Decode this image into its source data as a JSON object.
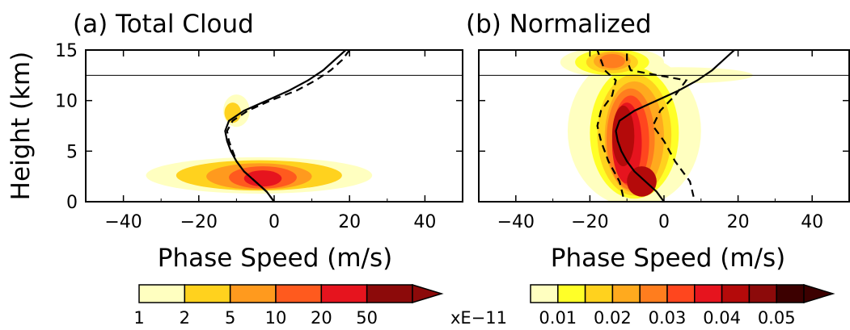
{
  "figure": {
    "ylabel": "Height (km)",
    "cb_unit": "xE−11"
  },
  "chart_data": [
    {
      "type": "heatmap",
      "panel": "a",
      "title": "(a) Total Cloud",
      "xlabel": "Phase Speed (m/s)",
      "ylabel": "Height (km)",
      "xlim": [
        -50,
        50
      ],
      "ylim": [
        0,
        15
      ],
      "xticks": [
        -40,
        -20,
        0,
        20,
        40
      ],
      "yticks": [
        0,
        5,
        10,
        15
      ],
      "reference_height_km": 12.5,
      "contour_levels": [
        1,
        2,
        5,
        10,
        20,
        50
      ],
      "colorbar_labels": [
        "1",
        "2",
        "5",
        "10",
        "20",
        "50"
      ],
      "colorbar_colors": [
        "#ffffc0",
        "#ffd21e",
        "#ff9a1e",
        "#ff5a1e",
        "#e6141e",
        "#8c0a0a"
      ],
      "blobs": [
        {
          "x": -4,
          "y": 2.6,
          "rx": 30,
          "ry": 1.8,
          "level": 1
        },
        {
          "x": -10,
          "y": 9.0,
          "rx": 3.5,
          "ry": 1.6,
          "level": 1
        },
        {
          "x": -4,
          "y": 2.6,
          "rx": 22,
          "ry": 1.5,
          "level": 2
        },
        {
          "x": -11,
          "y": 8.8,
          "rx": 2.2,
          "ry": 1.0,
          "level": 2
        },
        {
          "x": -4,
          "y": 2.5,
          "rx": 14,
          "ry": 1.3,
          "level": 3
        },
        {
          "x": -3,
          "y": 2.4,
          "rx": 9,
          "ry": 1.1,
          "level": 4
        },
        {
          "x": -3,
          "y": 2.3,
          "rx": 5,
          "ry": 0.8,
          "level": 5
        }
      ],
      "lines": [
        {
          "style": "solid",
          "points": [
            [
              0,
              0
            ],
            [
              -2,
              1
            ],
            [
              -5,
              2
            ],
            [
              -8,
              3
            ],
            [
              -10,
              4
            ],
            [
              -11.5,
              5
            ],
            [
              -12.5,
              6
            ],
            [
              -13,
              7
            ],
            [
              -12,
              8
            ],
            [
              -8,
              9
            ],
            [
              -2,
              10
            ],
            [
              4,
              11
            ],
            [
              9,
              12
            ],
            [
              13,
              13
            ],
            [
              16,
              14
            ],
            [
              19,
              15
            ]
          ]
        },
        {
          "style": "dashed",
          "points": [
            [
              0,
              0
            ],
            [
              -2,
              1
            ],
            [
              -5,
              2
            ],
            [
              -8,
              3
            ],
            [
              -10,
              4
            ],
            [
              -11,
              5
            ],
            [
              -12,
              6
            ],
            [
              -12.5,
              7
            ],
            [
              -11,
              8
            ],
            [
              -7,
              9
            ],
            [
              -1,
              10
            ],
            [
              6,
              11
            ],
            [
              11,
              12
            ],
            [
              15,
              13
            ],
            [
              18,
              14
            ],
            [
              20,
              15
            ]
          ]
        }
      ]
    },
    {
      "type": "heatmap",
      "panel": "b",
      "title": "(b) Normalized",
      "xlabel": "Phase Speed (m/s)",
      "ylabel": "Height (km)",
      "xlim": [
        -50,
        50
      ],
      "ylim": [
        0,
        15
      ],
      "xticks": [
        -40,
        -20,
        0,
        20,
        40
      ],
      "yticks": [
        0,
        5,
        10,
        15
      ],
      "reference_height_km": 12.5,
      "contour_levels": [
        0.005,
        0.01,
        0.015,
        0.02,
        0.025,
        0.03,
        0.035,
        0.04,
        0.045,
        0.05
      ],
      "colorbar_labels": [
        "0.01",
        "0.02",
        "0.03",
        "0.04",
        "0.05"
      ],
      "colorbar_colors": [
        "#ffffc0",
        "#ffff28",
        "#ffd21e",
        "#ffaa1e",
        "#ff7d1e",
        "#ff461e",
        "#e6141e",
        "#b40a0a",
        "#8c0a0a",
        "#3c0000"
      ],
      "blobs": [
        {
          "x": -8,
          "y": 7.0,
          "rx": 18,
          "ry": 7.5,
          "level": 1
        },
        {
          "x": -14,
          "y": 13.8,
          "rx": 14,
          "ry": 1.5,
          "level": 1
        },
        {
          "x": 4,
          "y": 12.5,
          "rx": 20,
          "ry": 0.8,
          "level": 1
        },
        {
          "x": -8,
          "y": 6.8,
          "rx": 12,
          "ry": 6.5,
          "level": 2
        },
        {
          "x": -14,
          "y": 13.8,
          "rx": 10,
          "ry": 1.3,
          "level": 2
        },
        {
          "x": -8,
          "y": 6.6,
          "rx": 10,
          "ry": 6.0,
          "level": 3
        },
        {
          "x": -14,
          "y": 13.8,
          "rx": 7,
          "ry": 1.1,
          "level": 3
        },
        {
          "x": -8,
          "y": 6.4,
          "rx": 8,
          "ry": 5.5,
          "level": 4
        },
        {
          "x": -14,
          "y": 13.9,
          "rx": 5,
          "ry": 0.9,
          "level": 4
        },
        {
          "x": -9,
          "y": 6.2,
          "rx": 6.5,
          "ry": 5.0,
          "level": 5
        },
        {
          "x": -14,
          "y": 13.9,
          "rx": 3.5,
          "ry": 0.7,
          "level": 5
        },
        {
          "x": -9,
          "y": 6.0,
          "rx": 5,
          "ry": 4.5,
          "level": 6
        },
        {
          "x": -10,
          "y": 5.8,
          "rx": 4,
          "ry": 4.0,
          "level": 7
        },
        {
          "x": -11,
          "y": 6.5,
          "rx": 3,
          "ry": 3.0,
          "level": 8
        },
        {
          "x": -6,
          "y": 2.0,
          "rx": 4,
          "ry": 1.5,
          "level": 8
        }
      ],
      "lines": [
        {
          "style": "solid",
          "points": [
            [
              0,
              0
            ],
            [
              -2,
              1
            ],
            [
              -5,
              2
            ],
            [
              -8,
              3
            ],
            [
              -10,
              4
            ],
            [
              -11.5,
              5
            ],
            [
              -12.5,
              6
            ],
            [
              -13,
              7
            ],
            [
              -12,
              8
            ],
            [
              -8,
              9
            ],
            [
              -2,
              10
            ],
            [
              4,
              11
            ],
            [
              9,
              12
            ],
            [
              13,
              13
            ],
            [
              16,
              14
            ],
            [
              19,
              15
            ]
          ]
        },
        {
          "style": "dashed",
          "points": [
            [
              -11,
              0.5
            ],
            [
              -12,
              2
            ],
            [
              -15,
              4
            ],
            [
              -17,
              6
            ],
            [
              -18,
              7.5
            ],
            [
              -17,
              9
            ],
            [
              -14,
              10.5
            ],
            [
              -13,
              12
            ],
            [
              -16,
              13
            ],
            [
              -17,
              14
            ],
            [
              -18,
              15
            ]
          ]
        },
        {
          "style": "dashed",
          "points": [
            [
              8,
              0.5
            ],
            [
              7,
              2
            ],
            [
              3,
              4
            ],
            [
              0,
              6
            ],
            [
              -3,
              7.5
            ],
            [
              -1,
              9
            ],
            [
              3,
              10.5
            ],
            [
              6,
              12
            ],
            [
              -9,
              13
            ],
            [
              -10,
              14
            ],
            [
              -10,
              15
            ]
          ]
        }
      ]
    }
  ]
}
